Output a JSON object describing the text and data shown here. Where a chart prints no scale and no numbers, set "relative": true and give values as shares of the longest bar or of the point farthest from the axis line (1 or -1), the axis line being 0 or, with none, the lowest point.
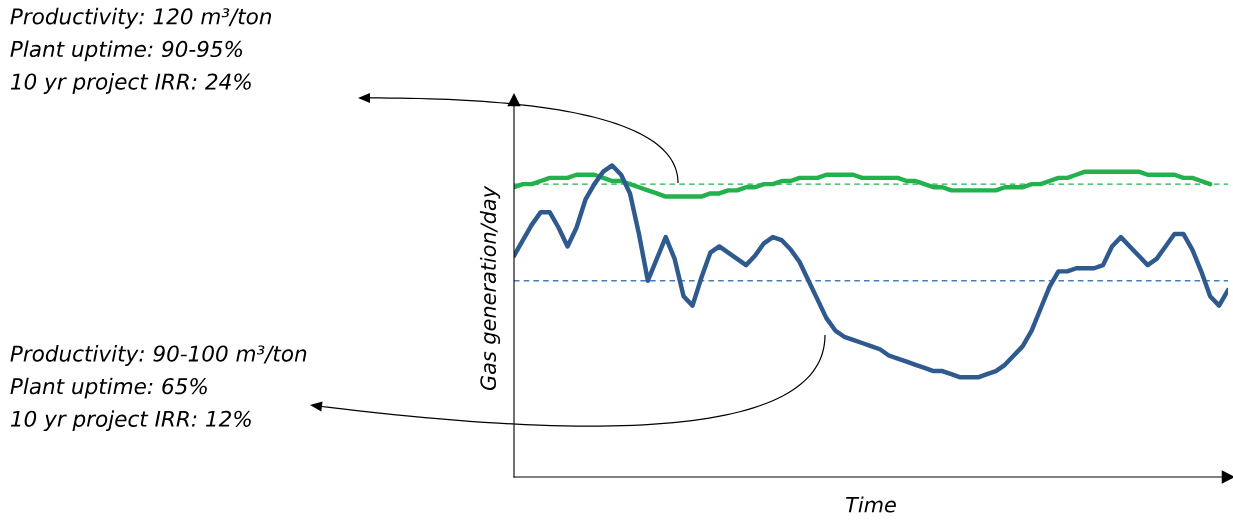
{
  "chart_data": {
    "type": "line",
    "relative": true,
    "xlabel": "Time",
    "ylabel": "Gas generation/day",
    "line_style": "solid",
    "marker": "none",
    "categories": [
      null,
      null,
      null,
      null,
      null,
      null,
      null,
      null,
      null,
      null,
      null,
      null,
      null,
      null,
      null,
      null,
      null,
      null,
      null,
      null,
      null,
      null,
      null,
      null,
      null,
      null,
      null,
      null,
      null,
      null,
      null,
      null,
      null,
      null,
      null,
      null,
      null,
      null,
      null,
      null,
      null,
      null,
      null,
      null,
      null,
      null,
      null,
      null,
      null,
      null,
      null,
      null,
      null,
      null,
      null,
      null,
      null,
      null,
      null,
      null,
      null,
      null,
      null,
      null,
      null,
      null,
      null,
      null,
      null,
      null,
      null,
      null,
      null,
      null,
      null,
      null,
      null,
      null,
      null,
      null,
      null
    ],
    "series": [
      {
        "color": "#22b14c",
        "values": [
          0.93,
          0.94,
          0.94,
          0.95,
          0.96,
          0.96,
          0.96,
          0.97,
          0.97,
          0.97,
          0.96,
          0.95,
          0.95,
          0.94,
          0.93,
          0.92,
          0.91,
          0.9,
          0.9,
          0.9,
          0.9,
          0.9,
          0.91,
          0.91,
          0.92,
          0.92,
          0.93,
          0.93,
          0.94,
          0.94,
          0.95,
          0.95,
          0.96,
          0.96,
          0.96,
          0.97,
          0.97,
          0.97,
          0.97,
          0.96,
          0.96,
          0.96,
          0.96,
          0.96,
          0.95,
          0.95,
          0.94,
          0.93,
          0.93,
          0.92,
          0.92,
          0.92,
          0.92,
          0.92,
          0.92,
          0.93,
          0.93,
          0.93,
          0.94,
          0.94,
          0.95,
          0.96,
          0.96,
          0.97,
          0.98,
          0.98,
          0.98,
          0.98,
          0.98,
          0.98,
          0.98,
          0.97,
          0.97,
          0.97,
          0.97,
          0.96,
          0.96,
          0.95,
          0.94,
          null,
          null
        ]
      },
      {
        "color": "#2e5a8e",
        "values": [
          0.71,
          0.76,
          0.81,
          0.85,
          0.85,
          0.8,
          0.74,
          0.8,
          0.89,
          0.94,
          0.98,
          1.0,
          0.97,
          0.91,
          0.78,
          0.63,
          0.7,
          0.77,
          0.7,
          0.58,
          0.55,
          0.64,
          0.72,
          0.74,
          0.72,
          0.7,
          0.68,
          0.71,
          0.75,
          0.77,
          0.76,
          0.73,
          0.69,
          0.63,
          0.57,
          0.51,
          0.47,
          0.45,
          0.44,
          0.43,
          0.42,
          0.41,
          0.39,
          0.38,
          0.37,
          0.36,
          0.35,
          0.34,
          0.34,
          0.33,
          0.32,
          0.32,
          0.32,
          0.33,
          0.34,
          0.36,
          0.39,
          0.42,
          0.47,
          0.54,
          0.61,
          0.66,
          0.66,
          0.67,
          0.67,
          0.67,
          0.68,
          0.74,
          0.77,
          0.74,
          0.71,
          0.68,
          0.7,
          0.74,
          0.78,
          0.78,
          0.73,
          0.66,
          0.58,
          0.55,
          0.6
        ]
      }
    ],
    "ref_lines": [
      {
        "axis": "y",
        "value": 0.94,
        "color": "#22b14c",
        "line_style": "dashed"
      },
      {
        "axis": "y",
        "value": 0.63,
        "color": "#4a7ab8",
        "line_style": "dashed"
      }
    ],
    "annotations": [
      "Productivity: 120 m³/ton\nPlant uptime: 90-95%\n10 yr project IRR: 24%",
      "Productivity: 90-100 m³/ton\nPlant uptime: 65%\n10 yr project IRR: 12%"
    ]
  }
}
